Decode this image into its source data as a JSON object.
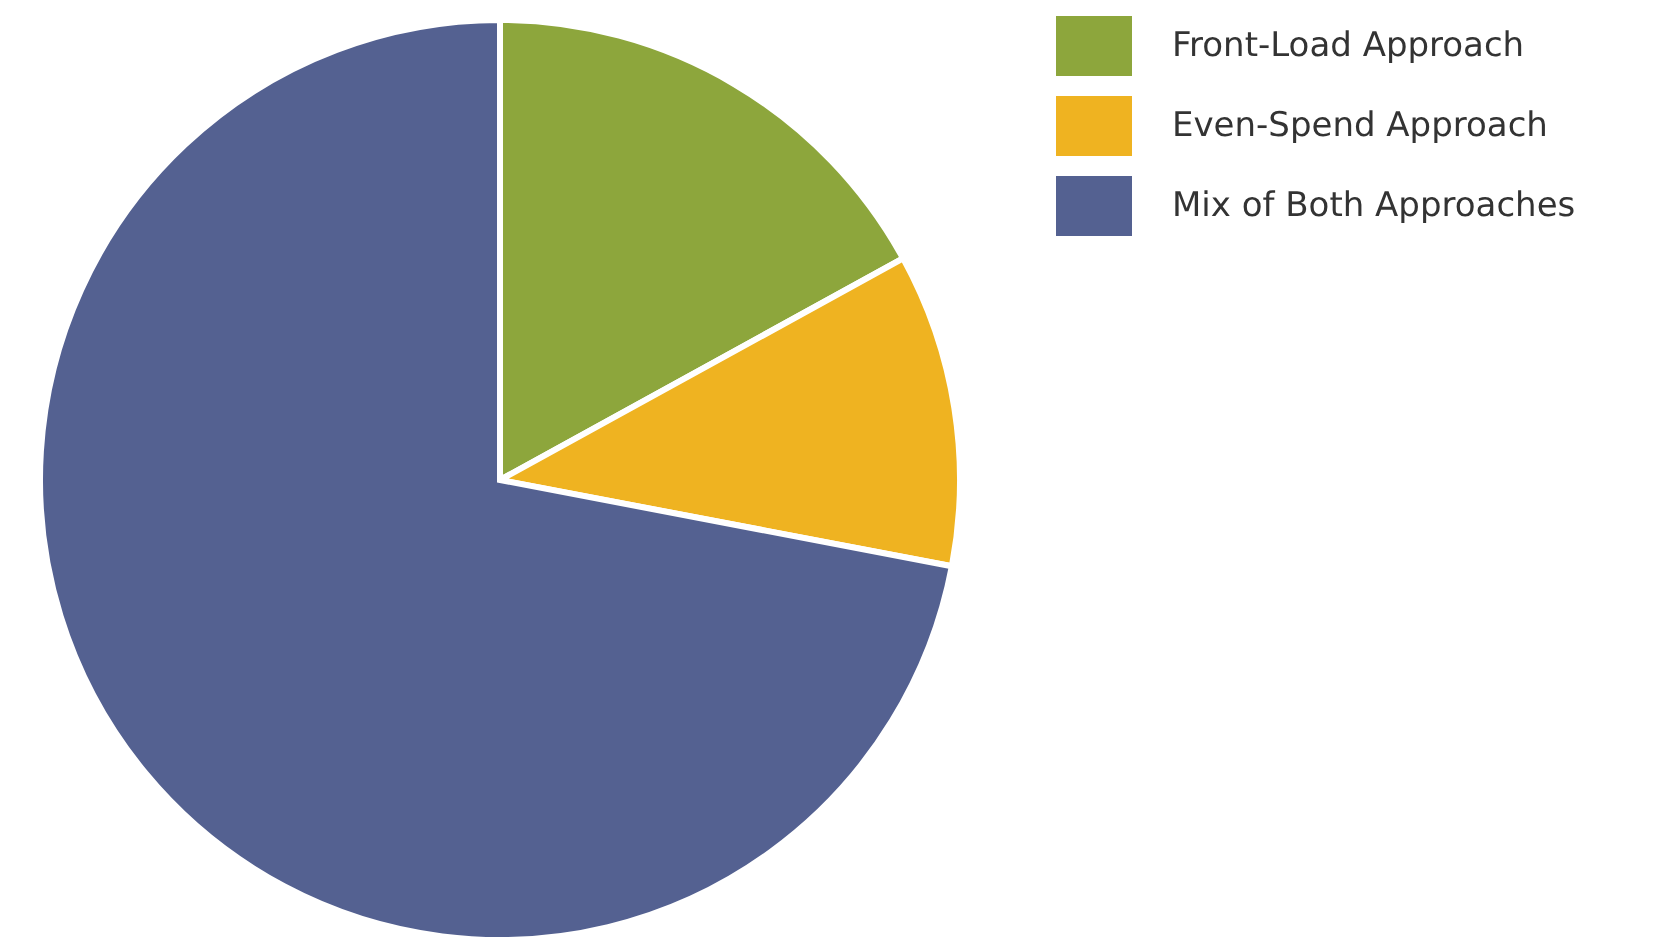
{
  "chart_data": {
    "type": "pie",
    "categories": [
      "Front-Load Approach",
      "Even-Spend Approach",
      "Mix of Both Approaches"
    ],
    "values": [
      17,
      11,
      72
    ],
    "colors": [
      "#8da63c",
      "#efb321",
      "#546191"
    ],
    "legend": "top right"
  }
}
